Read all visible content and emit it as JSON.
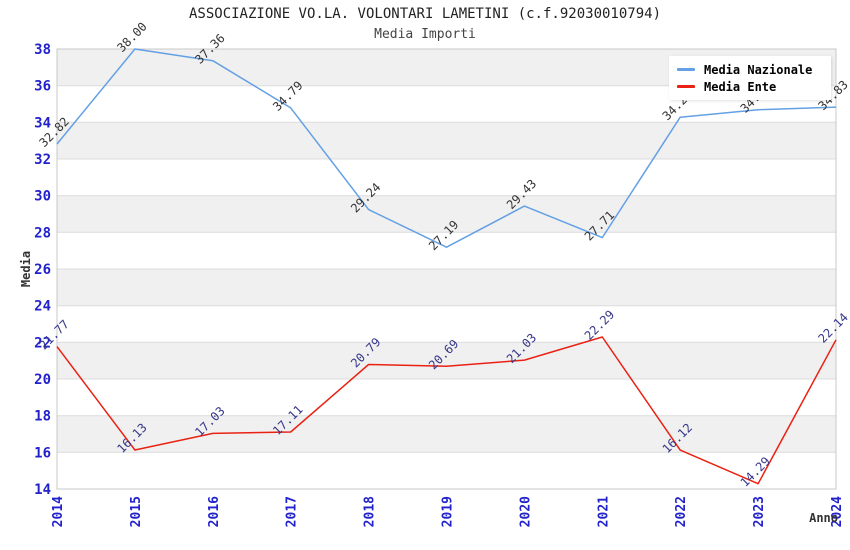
{
  "title": "ASSOCIAZIONE VO.LA. VOLONTARI LAMETINI (c.f.92030010794)",
  "subtitle": "Media Importi",
  "colors": {
    "band": "#f0f0f0",
    "grid": "#dcdcdc",
    "border": "#c8c8c8",
    "tick_label": "#2222cc",
    "axis_title": "#333333",
    "national_line": "#63a0e4",
    "entity_line": "#ea2213"
  },
  "legend": {
    "position": "top-right",
    "items": [
      {
        "label": "Media Nazionale",
        "color": "#63a0e4"
      },
      {
        "label": "Media Ente",
        "color": "#ea2213"
      }
    ]
  },
  "chart_data": {
    "type": "line",
    "title": "ASSOCIAZIONE VO.LA. VOLONTARI LAMETINI (c.f.92030010794)",
    "subtitle": "Media Importi",
    "x": [
      2014,
      2015,
      2016,
      2017,
      2018,
      2019,
      2020,
      2021,
      2022,
      2023,
      2024
    ],
    "xlabel": "Anno",
    "ylabel": "Media",
    "ylim": [
      14,
      38
    ],
    "ytick_step": 2,
    "grid": "horizontal-bands-alternating",
    "legend_position": "top-right",
    "series": [
      {
        "name": "Media Nazionale",
        "color": "#63a0e4",
        "label_color": "#333333",
        "values": [
          32.82,
          38.0,
          37.36,
          34.79,
          29.24,
          27.19,
          29.43,
          27.71,
          34.28,
          34.69,
          34.83
        ]
      },
      {
        "name": "Media Ente",
        "color": "#ea2213",
        "label_color": "#363688",
        "values": [
          21.77,
          16.13,
          17.03,
          17.11,
          20.79,
          20.69,
          21.03,
          22.29,
          16.12,
          14.29,
          22.14
        ]
      }
    ]
  }
}
